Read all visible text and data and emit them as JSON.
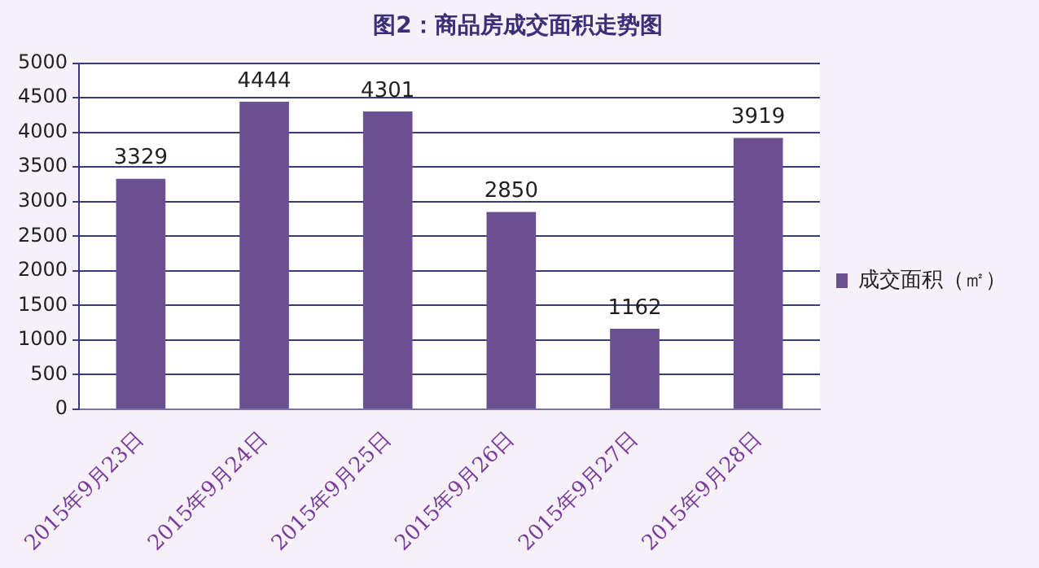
{
  "chart_data": {
    "type": "bar",
    "title": "图2：商品房成交面积走势图",
    "categories": [
      "2015年9月23日",
      "2015年9月24日",
      "2015年9月25日",
      "2015年9月26日",
      "2015年9月27日",
      "2015年9月28日"
    ],
    "series": [
      {
        "name": "成交面积（㎡）",
        "color": "#6b5091",
        "values": [
          3329,
          4444,
          4301,
          2850,
          1162,
          3919
        ]
      }
    ],
    "ylim": [
      0,
      5000
    ],
    "yticks": [
      0,
      500,
      1000,
      1500,
      2000,
      2500,
      3000,
      3500,
      4000,
      4500,
      5000
    ],
    "grid": "y",
    "legend": "right",
    "data_labels": true
  }
}
